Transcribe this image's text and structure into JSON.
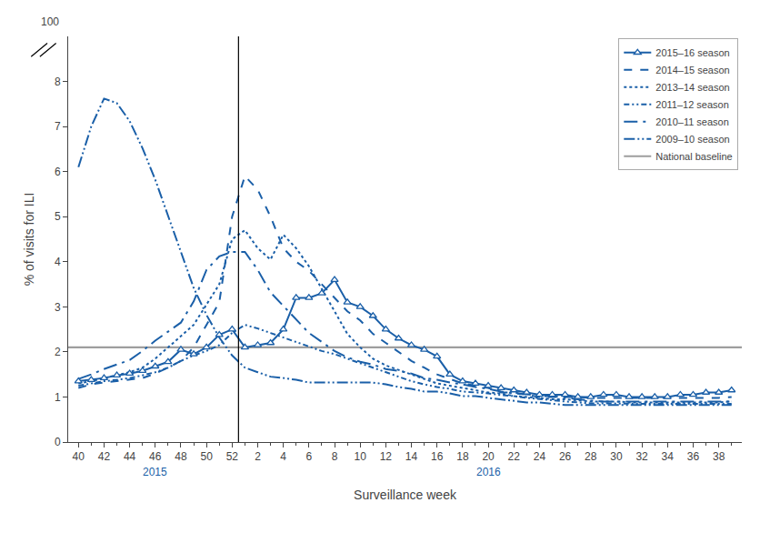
{
  "chart_data": {
    "type": "line",
    "xlabel": "Surveillance week",
    "ylabel": "% of visits for ILI",
    "annotations": [
      "2015",
      "2016",
      "100"
    ],
    "categories": [
      "40",
      null,
      "42",
      null,
      "44",
      null,
      "46",
      null,
      "48",
      null,
      "50",
      null,
      "52",
      null,
      "2",
      null,
      "4",
      null,
      "6",
      null,
      "8",
      null,
      "10",
      null,
      "12",
      null,
      "14",
      null,
      "16",
      null,
      "18",
      null,
      "20",
      null,
      "22",
      null,
      "24",
      null,
      "26",
      null,
      "28",
      null,
      "30",
      null,
      "32",
      null,
      "34",
      null,
      "36",
      null,
      "38",
      null
    ],
    "series": [
      {
        "name": "2015–16 season",
        "color": "#1a5fa8",
        "line_style": "solid",
        "marker": "triangle",
        "values": [
          1.35,
          1.38,
          1.42,
          1.48,
          1.52,
          1.58,
          1.68,
          1.78,
          2.05,
          1.95,
          2.1,
          2.38,
          2.5,
          2.1,
          2.15,
          2.2,
          2.5,
          3.2,
          3.2,
          3.3,
          3.6,
          3.1,
          3.0,
          2.8,
          2.5,
          2.3,
          2.15,
          2.05,
          1.9,
          1.5,
          1.35,
          1.3,
          1.25,
          1.2,
          1.15,
          1.1,
          1.05,
          1.05,
          1.05,
          1.0,
          1.0,
          1.05,
          1.05,
          1.0,
          1.0,
          1.0,
          1.0,
          1.05,
          1.05,
          1.1,
          1.1,
          1.15
        ]
      },
      {
        "name": "2014–15 season",
        "color": "#1a5fa8",
        "line_style": "dashed",
        "values": [
          1.2,
          1.28,
          1.32,
          1.35,
          1.38,
          1.42,
          1.52,
          1.65,
          1.8,
          2.1,
          2.6,
          3.1,
          5.0,
          5.9,
          5.6,
          5.0,
          4.3,
          4.0,
          3.8,
          3.5,
          3.2,
          2.9,
          2.7,
          2.4,
          2.2,
          2.0,
          1.8,
          1.65,
          1.5,
          1.4,
          1.3,
          1.25,
          1.2,
          1.1,
          1.1,
          1.05,
          1.0,
          1.0,
          1.0,
          1.0,
          0.98,
          0.98,
          0.98,
          0.98,
          0.98,
          0.98,
          0.98,
          0.98,
          0.98,
          0.98,
          0.98,
          1.0
        ]
      },
      {
        "name": "2013–14 season",
        "color": "#1a5fa8",
        "line_style": "dotted",
        "values": [
          1.3,
          1.35,
          1.42,
          1.48,
          1.55,
          1.65,
          1.85,
          2.1,
          2.35,
          2.6,
          3.05,
          3.5,
          4.5,
          4.7,
          4.3,
          4.05,
          4.6,
          4.3,
          3.9,
          3.4,
          2.9,
          2.4,
          2.1,
          1.85,
          1.7,
          1.6,
          1.5,
          1.4,
          1.3,
          1.25,
          1.2,
          1.15,
          1.1,
          1.08,
          1.02,
          1.0,
          0.98,
          0.95,
          0.95,
          0.92,
          0.9,
          0.9,
          0.9,
          0.88,
          0.88,
          0.88,
          0.88,
          0.88,
          0.88,
          0.88,
          0.88,
          0.9
        ]
      },
      {
        "name": "2011–12 season",
        "color": "#1a5fa8",
        "line_style": "dash_dot_dot",
        "values": [
          1.25,
          1.3,
          1.35,
          1.38,
          1.42,
          1.48,
          1.55,
          1.65,
          1.8,
          1.92,
          2.02,
          2.15,
          2.42,
          2.6,
          2.52,
          2.42,
          2.32,
          2.22,
          2.12,
          2.02,
          1.95,
          1.85,
          1.75,
          1.65,
          1.55,
          1.45,
          1.35,
          1.28,
          1.22,
          1.18,
          1.12,
          1.1,
          1.08,
          1.04,
          1.02,
          0.98,
          0.95,
          0.92,
          0.9,
          0.88,
          0.86,
          0.86,
          0.85,
          0.85,
          0.85,
          0.85,
          0.85,
          0.85,
          0.85,
          0.85,
          0.85,
          0.85
        ]
      },
      {
        "name": "2010–11 season",
        "color": "#1a5fa8",
        "line_style": "long_dash_dot",
        "values": [
          1.4,
          1.5,
          1.62,
          1.72,
          1.82,
          2.02,
          2.25,
          2.45,
          2.65,
          3.12,
          3.82,
          4.12,
          4.22,
          4.22,
          3.82,
          3.32,
          3.02,
          2.72,
          2.42,
          2.22,
          2.02,
          1.88,
          1.78,
          1.72,
          1.62,
          1.58,
          1.52,
          1.42,
          1.38,
          1.32,
          1.28,
          1.22,
          1.18,
          1.12,
          1.08,
          1.06,
          1.02,
          1.02,
          0.98,
          0.95,
          0.92,
          0.9,
          0.9,
          0.9,
          0.9,
          0.9,
          0.9,
          0.9,
          0.9,
          0.9,
          0.9,
          0.9
        ]
      },
      {
        "name": "2009–10 season",
        "color": "#1a5fa8",
        "line_style": "long_dash_dot_dot",
        "values": [
          6.1,
          7.0,
          7.62,
          7.52,
          7.12,
          6.52,
          5.82,
          5.02,
          4.22,
          3.42,
          2.82,
          2.32,
          1.92,
          1.65,
          1.55,
          1.45,
          1.42,
          1.38,
          1.32,
          1.32,
          1.32,
          1.32,
          1.32,
          1.32,
          1.28,
          1.22,
          1.18,
          1.12,
          1.12,
          1.08,
          1.02,
          1.02,
          0.98,
          0.95,
          0.92,
          0.88,
          0.88,
          0.85,
          0.82,
          0.82,
          0.82,
          0.82,
          0.82,
          0.82,
          0.82,
          0.82,
          0.82,
          0.82,
          0.82,
          0.82,
          0.82,
          0.82
        ]
      },
      {
        "name": "National baseline",
        "color": "#9e9e9e",
        "line_style": "solid",
        "type": "hline",
        "value": 2.1
      }
    ],
    "ylim": [
      0,
      9
    ],
    "yticks": [
      0,
      1,
      2,
      3,
      4,
      5,
      6,
      7,
      8
    ],
    "grid": false,
    "legend": "upper right"
  }
}
